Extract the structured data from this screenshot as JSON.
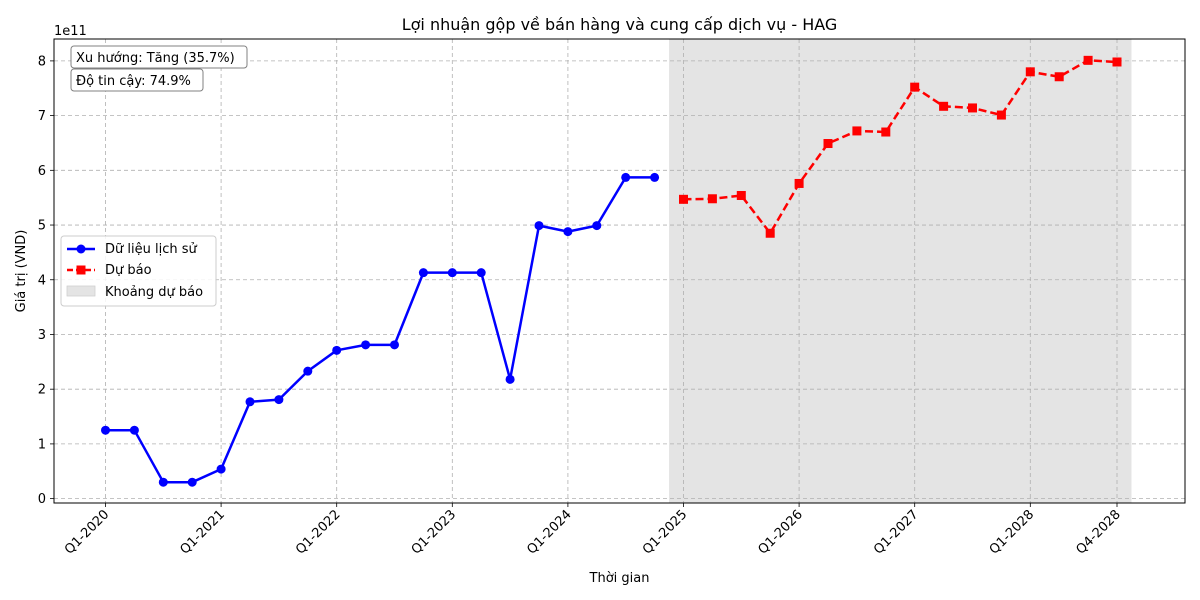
{
  "chart_data": {
    "type": "line",
    "title": "Lợi nhuận gộp về bán hàng và cung cấp dịch vụ - HAG",
    "xlabel": "Thời gian",
    "ylabel": "Giá trị (VND)",
    "y_scale_label": "1e11",
    "y_ticks": [
      "0",
      "1",
      "2",
      "3",
      "4",
      "5",
      "6",
      "7",
      "8"
    ],
    "y_ticks_values": [
      0,
      100000000000.0,
      200000000000.0,
      300000000000.0,
      400000000000.0,
      500000000000.0,
      600000000000.0,
      700000000000.0,
      800000000000.0
    ],
    "ylim": [
      -8000000000.0,
      840000000000.0
    ],
    "x_ticks": [
      "Q1-2020",
      "Q1-2021",
      "Q1-2022",
      "Q1-2023",
      "Q1-2024",
      "Q1-2025",
      "Q1-2026",
      "Q1-2027",
      "Q1-2028",
      "Q4-2028"
    ],
    "x_tick_periods": [
      "Q1-2020",
      "Q1-2021",
      "Q1-2022",
      "Q1-2023",
      "Q1-2024",
      "Q1-2025",
      "Q1-2026",
      "Q1-2027",
      "Q1-2028",
      "Q4-2028"
    ],
    "xlim": [
      "Q4-2019",
      "Q2-2029"
    ],
    "grid": true,
    "legend_position": "center-left",
    "forecast_region": {
      "label": "Khoảng dự báo",
      "start": "Q4-2024",
      "end": "Q4-2028",
      "color": "#e4e4e4"
    },
    "series": [
      {
        "name": "Dữ liệu lịch sử",
        "color": "#0000ff",
        "marker": "circle",
        "linestyle": "solid",
        "x": [
          "Q1-2020",
          "Q2-2020",
          "Q3-2020",
          "Q4-2020",
          "Q1-2021",
          "Q2-2021",
          "Q3-2021",
          "Q4-2021",
          "Q1-2022",
          "Q2-2022",
          "Q3-2022",
          "Q4-2022",
          "Q1-2023",
          "Q2-2023",
          "Q3-2023",
          "Q4-2023",
          "Q1-2024",
          "Q2-2024",
          "Q3-2024",
          "Q4-2024"
        ],
        "values": [
          125000000000.0,
          125000000000.0,
          30000000000.0,
          30000000000.0,
          54000000000.0,
          177000000000.0,
          181000000000.0,
          233000000000.0,
          271000000000.0,
          281000000000.0,
          281000000000.0,
          413000000000.0,
          413000000000.0,
          413000000000.0,
          218000000000.0,
          499000000000.0,
          488000000000.0,
          499000000000.0,
          587000000000.0,
          587000000000.0
        ]
      },
      {
        "name": "Dự báo",
        "color": "#ff0000",
        "marker": "square",
        "linestyle": "dashed",
        "x": [
          "Q1-2025",
          "Q2-2025",
          "Q3-2025",
          "Q4-2025",
          "Q1-2026",
          "Q2-2026",
          "Q3-2026",
          "Q4-2026",
          "Q1-2027",
          "Q2-2027",
          "Q3-2027",
          "Q4-2027",
          "Q1-2028",
          "Q2-2028",
          "Q3-2028",
          "Q4-2028"
        ],
        "values": [
          547000000000.0,
          548000000000.0,
          554000000000.0,
          485000000000.0,
          576000000000.0,
          649000000000.0,
          672000000000.0,
          670000000000.0,
          752000000000.0,
          717000000000.0,
          714000000000.0,
          701000000000.0,
          780000000000.0,
          771000000000.0,
          801000000000.0,
          798000000000.0
        ]
      }
    ],
    "annotations": [
      "Xu hướng: Tăng (35.7%)",
      "Độ tin cậy: 74.9%"
    ]
  }
}
